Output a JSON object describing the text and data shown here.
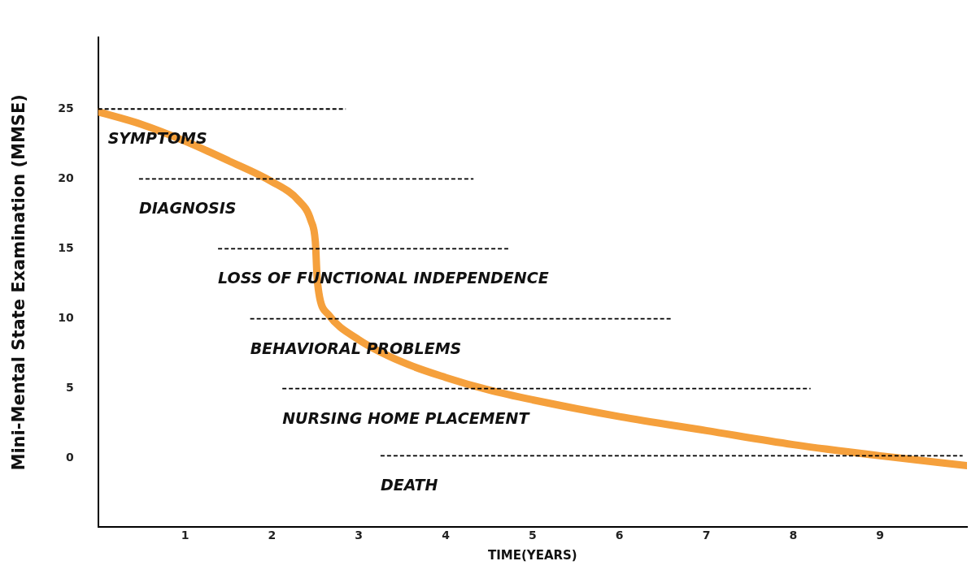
{
  "chart_data": {
    "type": "line",
    "xlabel": "TIME(YEARS)",
    "ylabel": "Mini-Mental State Examination (MMSE)",
    "xlim": [
      0,
      10
    ],
    "xticks": [
      1,
      2,
      3,
      4,
      5,
      6,
      7,
      8,
      9
    ],
    "ylim": [
      -4.9,
      30.1
    ],
    "yticks": [
      0,
      5,
      10,
      15,
      20,
      25
    ],
    "grid": false,
    "legend": false,
    "marker": "none",
    "series": [
      {
        "name": "SYMPTOMS",
        "line_style": "dashed",
        "color": "#000000",
        "x": [
          0,
          2.85
        ],
        "values": [
          25,
          25
        ]
      },
      {
        "name": "DIAGNOSIS",
        "line_style": "dashed",
        "color": "#000000",
        "x": [
          0.47,
          4.32
        ],
        "values": [
          20,
          20
        ]
      },
      {
        "name": "LOSS OF FUNCTIONAL INDEPENDENCE",
        "line_style": "dashed",
        "color": "#000000",
        "x": [
          1.38,
          4.72
        ],
        "values": [
          15,
          15
        ]
      },
      {
        "name": "BEHAVIORAL PROBLEMS",
        "line_style": "dashed",
        "color": "#000000",
        "x": [
          1.75,
          6.6
        ],
        "values": [
          10,
          10
        ]
      },
      {
        "name": "NURSING HOME PLACEMENT",
        "line_style": "dashed",
        "color": "#000000",
        "x": [
          2.12,
          8.2
        ],
        "values": [
          5,
          5
        ]
      },
      {
        "name": "DEATH",
        "line_style": "dashed",
        "color": "#000000",
        "x": [
          3.25,
          9.95
        ],
        "values": [
          0.2,
          0.2
        ]
      },
      {
        "line_style": "solid",
        "color": "#f5a03c",
        "x": [
          0,
          0.5,
          1,
          1.5,
          2,
          2.3,
          2.45,
          2.5,
          2.52,
          2.55,
          2.65,
          3,
          3.5,
          4,
          4.5,
          5,
          6,
          7,
          8,
          9,
          10
        ],
        "values": [
          24.8,
          23.9,
          22.7,
          21.3,
          19.8,
          18.5,
          17,
          15.5,
          13,
          11.5,
          10.3,
          8.5,
          6.9,
          5.8,
          4.9,
          4.2,
          3,
          2,
          1,
          0.2,
          -0.5
        ]
      }
    ]
  }
}
